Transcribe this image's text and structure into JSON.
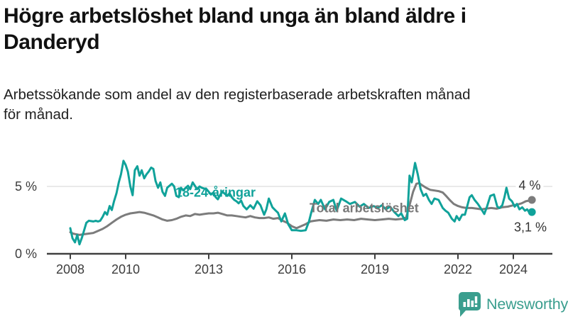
{
  "header": {
    "title": "Högre arbetslöshet bland unga än bland äldre i Danderyd",
    "title_lines": [
      "Högre arbetslöshet bland unga än bland äldre i",
      "Danderyd"
    ],
    "subtitle": "Arbetssökande som andel av den registerbaserade arbetskraften månad för månad.",
    "subtitle_lines": [
      "Arbetssökande som andel av den registerbaserade arbetskraften månad",
      "för månad."
    ]
  },
  "chart_data": {
    "type": "line",
    "title": "Högre arbetslöshet bland unga än bland äldre i Danderyd",
    "xlabel": "",
    "ylabel": "Arbetssökande som andel av den registerbaserade arbetskraften",
    "unit": "percent",
    "xlim": [
      2008,
      2024.9
    ],
    "ylim": [
      0,
      7.3
    ],
    "grid": "single-horizontal-line-at-5",
    "legend_position": "inline-labels-on-lines",
    "x_ticks": [
      2008,
      2010,
      2013,
      2016,
      2019,
      2022,
      2024
    ],
    "y_ticks": [
      {
        "value": 5,
        "label": "5 %"
      },
      {
        "value": 0,
        "label": "0 %"
      }
    ],
    "colors": {
      "grid": "#dcdcdc",
      "axis": "#404040",
      "tick_text": "#3d3d3d",
      "value_label_text": "#333333"
    },
    "series": [
      {
        "name": "18-24-åringar",
        "color": "#10a29a",
        "end_label": "3,1 %",
        "last_value": 3.1,
        "points": [
          [
            2008.0,
            1.9
          ],
          [
            2008.08,
            1.15
          ],
          [
            2008.17,
            0.85
          ],
          [
            2008.25,
            1.4
          ],
          [
            2008.33,
            0.7
          ],
          [
            2008.42,
            1.2
          ],
          [
            2008.5,
            1.75
          ],
          [
            2008.58,
            2.3
          ],
          [
            2008.67,
            2.45
          ],
          [
            2008.83,
            2.4
          ],
          [
            2008.92,
            2.45
          ],
          [
            2009.0,
            2.4
          ],
          [
            2009.08,
            2.45
          ],
          [
            2009.17,
            2.75
          ],
          [
            2009.25,
            3.1
          ],
          [
            2009.33,
            2.9
          ],
          [
            2009.42,
            3.55
          ],
          [
            2009.5,
            3.25
          ],
          [
            2009.58,
            3.9
          ],
          [
            2009.67,
            4.5
          ],
          [
            2009.75,
            5.3
          ],
          [
            2009.83,
            5.9
          ],
          [
            2009.92,
            6.9
          ],
          [
            2010.0,
            6.6
          ],
          [
            2010.08,
            6.1
          ],
          [
            2010.17,
            5.0
          ],
          [
            2010.25,
            4.35
          ],
          [
            2010.33,
            6.2
          ],
          [
            2010.42,
            6.5
          ],
          [
            2010.5,
            5.8
          ],
          [
            2010.58,
            6.2
          ],
          [
            2010.67,
            5.6
          ],
          [
            2010.75,
            5.9
          ],
          [
            2010.83,
            6.1
          ],
          [
            2010.92,
            6.4
          ],
          [
            2011.0,
            6.3
          ],
          [
            2011.08,
            5.4
          ],
          [
            2011.17,
            4.9
          ],
          [
            2011.25,
            5.3
          ],
          [
            2011.33,
            4.6
          ],
          [
            2011.42,
            4.3
          ],
          [
            2011.5,
            4.9
          ],
          [
            2011.58,
            5.05
          ],
          [
            2011.67,
            5.2
          ],
          [
            2011.75,
            5.0
          ],
          [
            2011.83,
            4.3
          ],
          [
            2011.92,
            4.2
          ],
          [
            2012.0,
            4.9
          ],
          [
            2012.08,
            4.7
          ],
          [
            2012.17,
            4.9
          ],
          [
            2012.25,
            5.05
          ],
          [
            2012.33,
            4.8
          ],
          [
            2012.42,
            5.3
          ],
          [
            2012.5,
            5.05
          ],
          [
            2012.58,
            4.8
          ],
          [
            2012.67,
            5.0
          ],
          [
            2012.75,
            4.9
          ],
          [
            2012.83,
            4.85
          ],
          [
            2012.92,
            4.8
          ],
          [
            2013.0,
            4.6
          ],
          [
            2013.08,
            4.4
          ],
          [
            2013.17,
            4.55
          ],
          [
            2013.25,
            4.2
          ],
          [
            2013.33,
            4.05
          ],
          [
            2013.42,
            4.4
          ],
          [
            2013.5,
            4.6
          ],
          [
            2013.58,
            4.45
          ],
          [
            2013.67,
            4.3
          ],
          [
            2013.75,
            4.5
          ],
          [
            2013.83,
            4.2
          ],
          [
            2013.92,
            4.0
          ],
          [
            2014.0,
            3.9
          ],
          [
            2014.08,
            3.75
          ],
          [
            2014.17,
            3.95
          ],
          [
            2014.25,
            3.55
          ],
          [
            2014.37,
            3.3
          ],
          [
            2014.5,
            3.6
          ],
          [
            2014.62,
            3.35
          ],
          [
            2014.75,
            3.9
          ],
          [
            2014.87,
            3.6
          ],
          [
            2015.0,
            2.9
          ],
          [
            2015.08,
            3.3
          ],
          [
            2015.17,
            4.1
          ],
          [
            2015.3,
            3.45
          ],
          [
            2015.42,
            3.2
          ],
          [
            2015.5,
            3.05
          ],
          [
            2015.62,
            2.4
          ],
          [
            2015.75,
            3.0
          ],
          [
            2015.87,
            2.2
          ],
          [
            2016.0,
            1.75
          ],
          [
            2016.17,
            1.75
          ],
          [
            2016.33,
            1.7
          ],
          [
            2016.5,
            1.75
          ],
          [
            2016.62,
            2.4
          ],
          [
            2016.7,
            3.05
          ],
          [
            2016.83,
            4.0
          ],
          [
            2016.95,
            3.7
          ],
          [
            2017.05,
            4.0
          ],
          [
            2017.2,
            3.3
          ],
          [
            2017.35,
            3.85
          ],
          [
            2017.5,
            4.0
          ],
          [
            2017.62,
            3.2
          ],
          [
            2017.78,
            4.1
          ],
          [
            2017.95,
            3.9
          ],
          [
            2018.1,
            3.7
          ],
          [
            2018.28,
            3.85
          ],
          [
            2018.45,
            3.5
          ],
          [
            2018.6,
            3.7
          ],
          [
            2018.78,
            3.4
          ],
          [
            2018.95,
            3.55
          ],
          [
            2019.1,
            3.4
          ],
          [
            2019.25,
            3.6
          ],
          [
            2019.4,
            3.3
          ],
          [
            2019.55,
            3.5
          ],
          [
            2019.7,
            3.1
          ],
          [
            2019.85,
            2.8
          ],
          [
            2019.95,
            3.0
          ],
          [
            2020.08,
            2.5
          ],
          [
            2020.17,
            2.6
          ],
          [
            2020.25,
            5.8
          ],
          [
            2020.33,
            5.3
          ],
          [
            2020.45,
            6.75
          ],
          [
            2020.55,
            5.9
          ],
          [
            2020.65,
            4.8
          ],
          [
            2020.75,
            4.3
          ],
          [
            2020.85,
            4.45
          ],
          [
            2020.95,
            4.0
          ],
          [
            2021.05,
            3.7
          ],
          [
            2021.15,
            4.1
          ],
          [
            2021.3,
            4.0
          ],
          [
            2021.45,
            3.4
          ],
          [
            2021.55,
            3.2
          ],
          [
            2021.65,
            3.05
          ],
          [
            2021.78,
            2.6
          ],
          [
            2021.88,
            2.4
          ],
          [
            2021.95,
            2.8
          ],
          [
            2022.05,
            2.5
          ],
          [
            2022.15,
            2.9
          ],
          [
            2022.25,
            2.9
          ],
          [
            2022.33,
            3.5
          ],
          [
            2022.42,
            4.2
          ],
          [
            2022.5,
            4.35
          ],
          [
            2022.6,
            4.0
          ],
          [
            2022.72,
            3.7
          ],
          [
            2022.85,
            3.3
          ],
          [
            2022.95,
            2.95
          ],
          [
            2023.05,
            3.5
          ],
          [
            2023.17,
            4.3
          ],
          [
            2023.3,
            4.4
          ],
          [
            2023.42,
            3.5
          ],
          [
            2023.5,
            3.4
          ],
          [
            2023.6,
            3.6
          ],
          [
            2023.68,
            4.2
          ],
          [
            2023.75,
            4.9
          ],
          [
            2023.85,
            4.1
          ],
          [
            2023.95,
            3.9
          ],
          [
            2024.05,
            3.5
          ],
          [
            2024.13,
            3.7
          ],
          [
            2024.22,
            3.3
          ],
          [
            2024.32,
            3.45
          ],
          [
            2024.42,
            3.2
          ],
          [
            2024.5,
            3.3
          ],
          [
            2024.58,
            3.05
          ],
          [
            2024.67,
            3.1
          ]
        ]
      },
      {
        "name": "Total arbetslöshet",
        "color": "#7c7c7c",
        "end_label": "4 %",
        "last_value": 4.0,
        "points": [
          [
            2008.0,
            1.6
          ],
          [
            2008.1,
            1.5
          ],
          [
            2008.2,
            1.45
          ],
          [
            2008.33,
            1.4
          ],
          [
            2008.5,
            1.45
          ],
          [
            2008.67,
            1.5
          ],
          [
            2008.83,
            1.55
          ],
          [
            2009.0,
            1.7
          ],
          [
            2009.17,
            1.85
          ],
          [
            2009.33,
            2.05
          ],
          [
            2009.5,
            2.3
          ],
          [
            2009.67,
            2.55
          ],
          [
            2009.83,
            2.75
          ],
          [
            2010.0,
            2.9
          ],
          [
            2010.17,
            3.0
          ],
          [
            2010.33,
            3.05
          ],
          [
            2010.5,
            3.1
          ],
          [
            2010.67,
            3.05
          ],
          [
            2010.83,
            2.95
          ],
          [
            2011.0,
            2.85
          ],
          [
            2011.17,
            2.7
          ],
          [
            2011.33,
            2.55
          ],
          [
            2011.5,
            2.45
          ],
          [
            2011.67,
            2.5
          ],
          [
            2011.83,
            2.6
          ],
          [
            2012.0,
            2.75
          ],
          [
            2012.17,
            2.85
          ],
          [
            2012.33,
            2.8
          ],
          [
            2012.5,
            2.95
          ],
          [
            2012.67,
            2.9
          ],
          [
            2012.83,
            2.95
          ],
          [
            2013.0,
            3.0
          ],
          [
            2013.17,
            3.0
          ],
          [
            2013.33,
            3.05
          ],
          [
            2013.5,
            2.95
          ],
          [
            2013.67,
            2.85
          ],
          [
            2013.83,
            2.85
          ],
          [
            2014.0,
            2.8
          ],
          [
            2014.17,
            2.75
          ],
          [
            2014.33,
            2.7
          ],
          [
            2014.5,
            2.8
          ],
          [
            2014.67,
            2.7
          ],
          [
            2014.83,
            2.65
          ],
          [
            2015.0,
            2.65
          ],
          [
            2015.17,
            2.7
          ],
          [
            2015.33,
            2.6
          ],
          [
            2015.5,
            2.65
          ],
          [
            2015.67,
            2.45
          ],
          [
            2015.83,
            2.3
          ],
          [
            2016.0,
            2.05
          ],
          [
            2016.17,
            1.9
          ],
          [
            2016.33,
            2.05
          ],
          [
            2016.5,
            2.2
          ],
          [
            2016.67,
            2.4
          ],
          [
            2016.83,
            2.45
          ],
          [
            2017.0,
            2.5
          ],
          [
            2017.25,
            2.45
          ],
          [
            2017.5,
            2.55
          ],
          [
            2017.75,
            2.5
          ],
          [
            2018.0,
            2.55
          ],
          [
            2018.25,
            2.5
          ],
          [
            2018.5,
            2.6
          ],
          [
            2018.75,
            2.55
          ],
          [
            2019.0,
            2.5
          ],
          [
            2019.25,
            2.55
          ],
          [
            2019.5,
            2.6
          ],
          [
            2019.75,
            2.55
          ],
          [
            2020.0,
            2.6
          ],
          [
            2020.13,
            2.7
          ],
          [
            2020.25,
            3.6
          ],
          [
            2020.38,
            4.6
          ],
          [
            2020.5,
            5.2
          ],
          [
            2020.6,
            5.25
          ],
          [
            2020.7,
            5.1
          ],
          [
            2020.85,
            4.9
          ],
          [
            2021.0,
            4.75
          ],
          [
            2021.15,
            4.7
          ],
          [
            2021.3,
            4.65
          ],
          [
            2021.45,
            4.55
          ],
          [
            2021.55,
            4.35
          ],
          [
            2021.7,
            4.0
          ],
          [
            2021.85,
            3.7
          ],
          [
            2022.0,
            3.55
          ],
          [
            2022.15,
            3.45
          ],
          [
            2022.3,
            3.4
          ],
          [
            2022.5,
            3.4
          ],
          [
            2022.7,
            3.35
          ],
          [
            2022.85,
            3.3
          ],
          [
            2023.0,
            3.35
          ],
          [
            2023.2,
            3.4
          ],
          [
            2023.4,
            3.35
          ],
          [
            2023.6,
            3.45
          ],
          [
            2023.8,
            3.5
          ],
          [
            2024.0,
            3.6
          ],
          [
            2024.15,
            3.65
          ],
          [
            2024.3,
            3.75
          ],
          [
            2024.45,
            3.9
          ],
          [
            2024.58,
            3.95
          ],
          [
            2024.67,
            4.0
          ]
        ]
      }
    ]
  },
  "branding": {
    "logo_text": "Newsworthy",
    "logo_color": "#3a9e8e",
    "logo_icon": "bar-chart-speech-bubble-icon"
  }
}
